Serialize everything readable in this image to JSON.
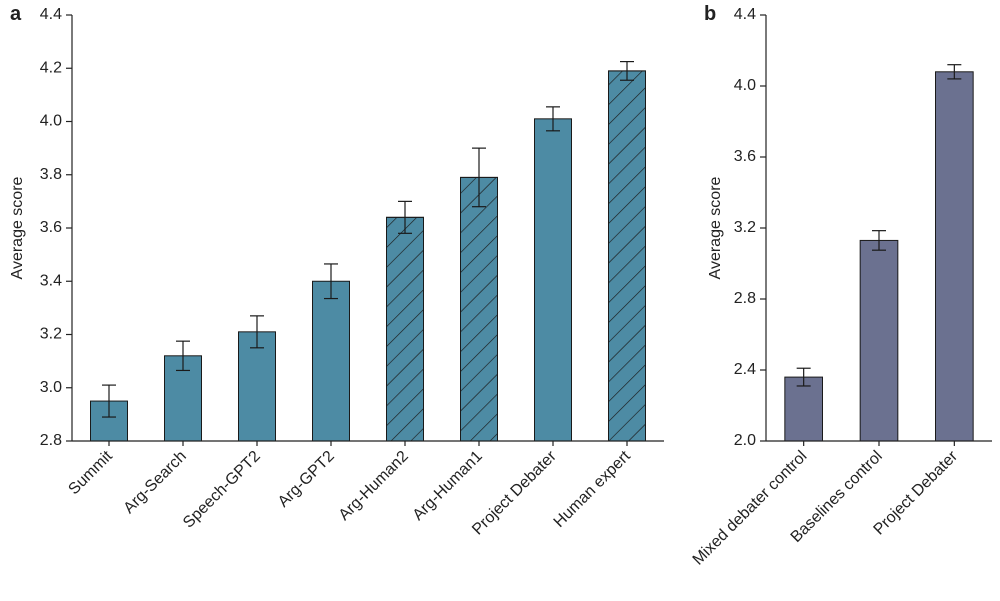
{
  "chart_data": [
    {
      "type": "bar",
      "panel_label": "a",
      "y_label": "Average score",
      "categories": [
        "Summit",
        "Arg-Search",
        "Speech-GPT2",
        "Arg-GPT2",
        "Arg-Human2",
        "Arg-Human1",
        "Project Debater",
        "Human expert"
      ],
      "values": [
        2.95,
        3.12,
        3.21,
        3.4,
        3.64,
        3.79,
        4.01,
        4.19
      ],
      "errors": [
        0.06,
        0.055,
        0.06,
        0.065,
        0.06,
        0.11,
        0.045,
        0.035
      ],
      "hatch": [
        false,
        false,
        false,
        false,
        true,
        true,
        false,
        true
      ],
      "color": "#4d8ba4",
      "ylim": [
        2.8,
        4.4
      ],
      "yticks": [
        2.8,
        {
          "value": 3.0,
          "label": "3.0"
        },
        3.2,
        3.4,
        3.6,
        3.8,
        {
          "value": 4.0,
          "label": "4.0"
        },
        4.2,
        4.4
      ]
    },
    {
      "type": "bar",
      "panel_label": "b",
      "y_label": "Average score",
      "categories": [
        "Mixed debater control",
        "Baselines control",
        "Project Debater"
      ],
      "values": [
        2.36,
        3.13,
        4.08
      ],
      "errors": [
        0.05,
        0.055,
        0.04
      ],
      "hatch": [
        false,
        false,
        false
      ],
      "color": "#6b7190",
      "ylim": [
        2.0,
        4.4
      ],
      "yticks": [
        {
          "value": 2.0,
          "label": "2.0"
        },
        2.4,
        2.8,
        3.2,
        3.6,
        {
          "value": 4.0,
          "label": "4.0"
        },
        4.4
      ]
    }
  ]
}
